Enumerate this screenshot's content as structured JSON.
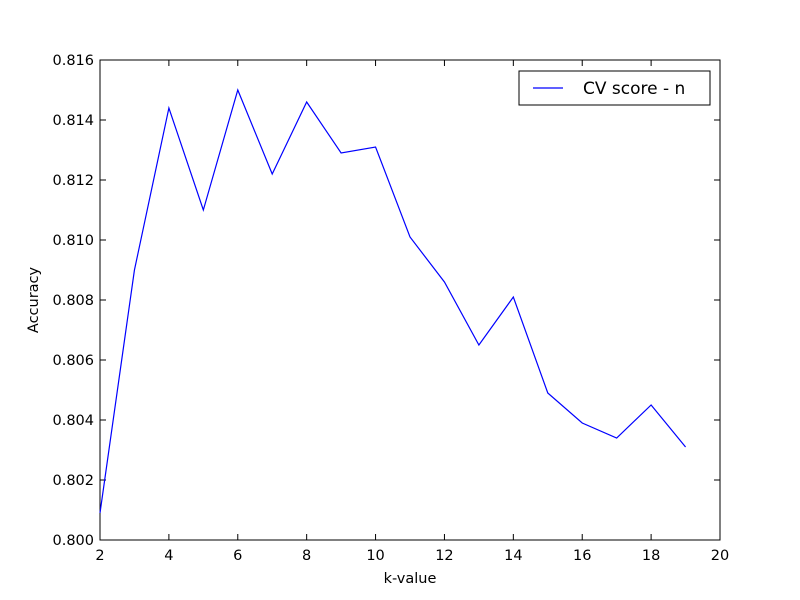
{
  "chart_data": {
    "type": "line",
    "title": "",
    "xlabel": "k-value",
    "ylabel": "Accuracy",
    "xlim": [
      2,
      20
    ],
    "ylim": [
      0.8,
      0.816
    ],
    "xticks": [
      "2",
      "4",
      "6",
      "8",
      "10",
      "12",
      "14",
      "16",
      "18",
      "20"
    ],
    "yticks": [
      "0.800",
      "0.802",
      "0.804",
      "0.806",
      "0.808",
      "0.810",
      "0.812",
      "0.814",
      "0.816"
    ],
    "grid": false,
    "legend_position": "top-right",
    "series": [
      {
        "name": "CV score - n",
        "color": "#0000ff",
        "x": [
          2,
          3,
          4,
          5,
          6,
          7,
          8,
          9,
          10,
          11,
          12,
          13,
          14,
          15,
          16,
          17,
          18,
          19
        ],
        "y": [
          0.8009,
          0.809,
          0.8144,
          0.811,
          0.815,
          0.8122,
          0.8146,
          0.8129,
          0.8131,
          0.8101,
          0.8086,
          0.8065,
          0.8081,
          0.8049,
          0.8039,
          0.8034,
          0.8045,
          0.8031
        ]
      }
    ]
  }
}
